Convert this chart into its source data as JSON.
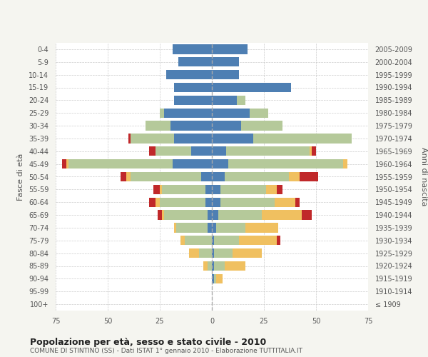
{
  "age_groups": [
    "100+",
    "95-99",
    "90-94",
    "85-89",
    "80-84",
    "75-79",
    "70-74",
    "65-69",
    "60-64",
    "55-59",
    "50-54",
    "45-49",
    "40-44",
    "35-39",
    "30-34",
    "25-29",
    "20-24",
    "15-19",
    "10-14",
    "5-9",
    "0-4"
  ],
  "birth_years": [
    "≤ 1909",
    "1910-1914",
    "1915-1919",
    "1920-1924",
    "1925-1929",
    "1930-1934",
    "1935-1939",
    "1940-1944",
    "1945-1949",
    "1950-1954",
    "1955-1959",
    "1960-1964",
    "1965-1969",
    "1970-1974",
    "1975-1979",
    "1980-1984",
    "1985-1989",
    "1990-1994",
    "1995-1999",
    "2000-2004",
    "2005-2009"
  ],
  "male": {
    "celibi": [
      0,
      0,
      0,
      0,
      0,
      0,
      2,
      2,
      3,
      3,
      5,
      19,
      10,
      18,
      20,
      23,
      18,
      18,
      22,
      16,
      19
    ],
    "coniugati": [
      0,
      0,
      0,
      2,
      6,
      13,
      15,
      21,
      22,
      21,
      34,
      50,
      17,
      21,
      12,
      2,
      0,
      0,
      0,
      0,
      0
    ],
    "vedovi": [
      0,
      0,
      0,
      2,
      5,
      2,
      1,
      1,
      2,
      1,
      2,
      1,
      0,
      0,
      0,
      0,
      0,
      0,
      0,
      0,
      0
    ],
    "divorziati": [
      0,
      0,
      0,
      0,
      0,
      0,
      0,
      2,
      3,
      3,
      3,
      2,
      3,
      1,
      0,
      0,
      0,
      0,
      0,
      0,
      0
    ]
  },
  "female": {
    "nubili": [
      0,
      0,
      1,
      1,
      1,
      1,
      2,
      3,
      4,
      4,
      6,
      8,
      7,
      20,
      14,
      18,
      12,
      38,
      13,
      13,
      17
    ],
    "coniugate": [
      0,
      0,
      1,
      5,
      9,
      12,
      14,
      21,
      26,
      22,
      31,
      55,
      40,
      47,
      20,
      9,
      4,
      0,
      0,
      0,
      0
    ],
    "vedove": [
      0,
      0,
      3,
      10,
      14,
      18,
      16,
      19,
      10,
      5,
      5,
      2,
      1,
      0,
      0,
      0,
      0,
      0,
      0,
      0,
      0
    ],
    "divorziate": [
      0,
      0,
      0,
      0,
      0,
      2,
      0,
      5,
      2,
      3,
      9,
      0,
      2,
      0,
      0,
      0,
      0,
      0,
      0,
      0,
      0
    ]
  },
  "colors": {
    "celibi_nubili": "#4e7fb3",
    "coniugati": "#b5c99a",
    "vedovi": "#f0c060",
    "divorziati": "#c0282a"
  },
  "title": "Popolazione per età, sesso e stato civile - 2010",
  "subtitle": "COMUNE DI STINTINO (SS) - Dati ISTAT 1° gennaio 2010 - Elaborazione TUTTITALIA.IT",
  "xlim": 75,
  "ylabel_left": "Fasce di età",
  "ylabel_right": "Anni di nascita",
  "background_color": "#f5f5f0",
  "bar_background": "#ffffff"
}
